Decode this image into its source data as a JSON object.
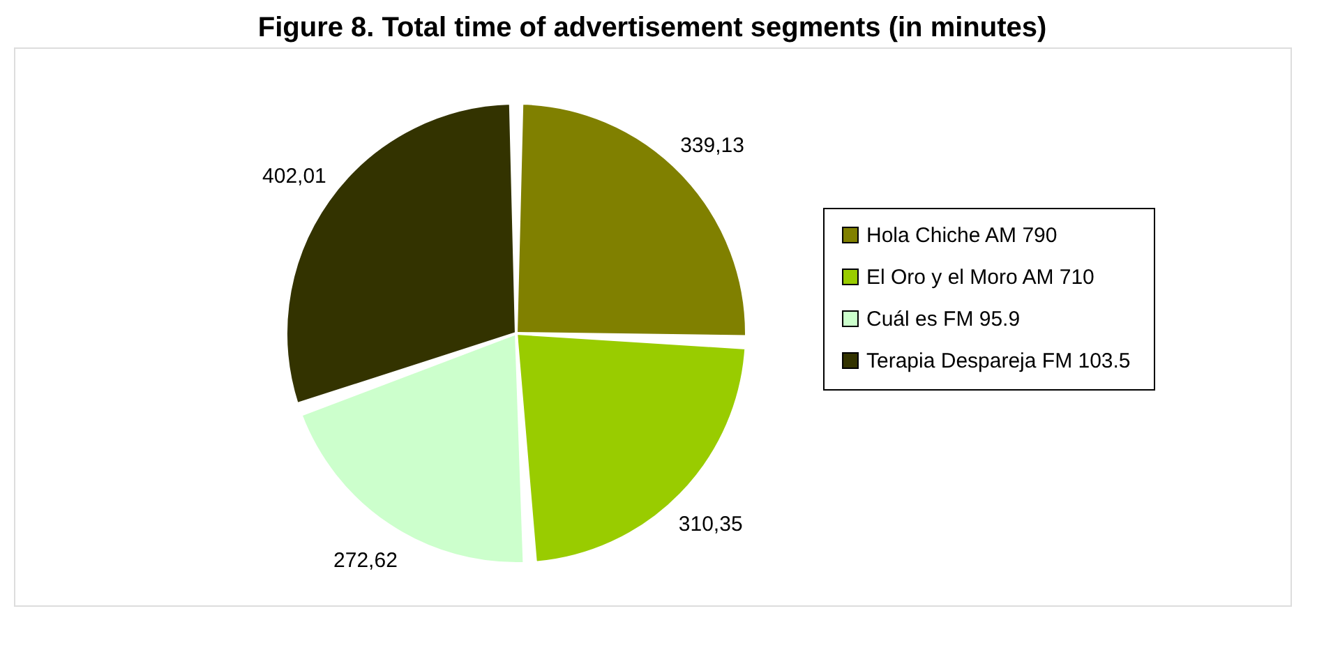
{
  "chart_data": {
    "type": "pie",
    "title": "Figure 8. Total time of advertisement segments (in minutes)",
    "categories": [
      "Hola Chiche AM 790",
      "El Oro y el Moro   AM 710",
      "Cuál es   FM 95.9",
      "Terapia Despareja  FM 103.5"
    ],
    "values": [
      339.13,
      310.35,
      272.62,
      402.01
    ],
    "value_labels": [
      "339,13",
      "310,35",
      "272,62",
      "402,01"
    ],
    "colors": [
      "#808000",
      "#99cc00",
      "#ccffcc",
      "#333300"
    ],
    "legend": "right"
  }
}
